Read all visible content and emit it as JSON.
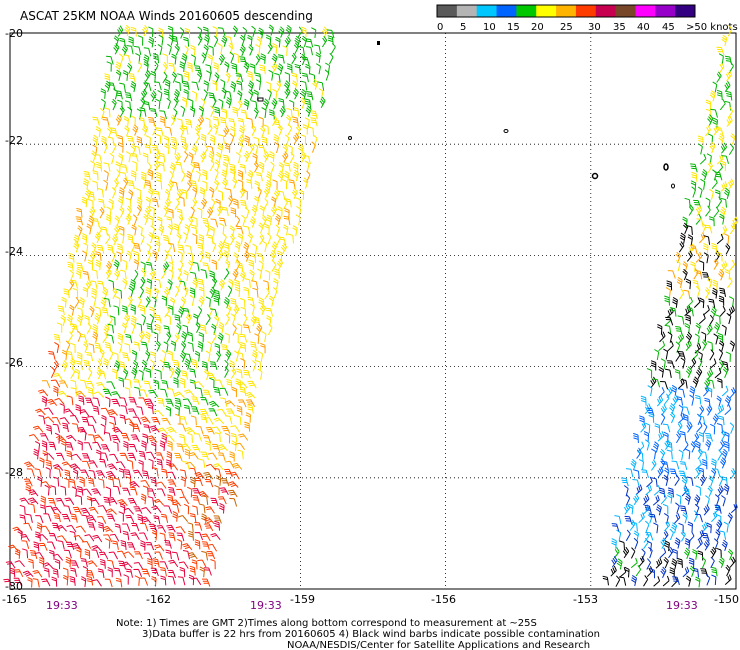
{
  "title": "ASCAT 25KM NOAA Winds 20160605 descending",
  "legend": {
    "labels": [
      "0",
      "5",
      "10",
      "15",
      "20",
      "25",
      "30",
      "35",
      "40",
      "45",
      ">50 knots"
    ],
    "colors": [
      "#5a5a5a",
      "#b4b4b4",
      "#00c8ff",
      "#0064ff",
      "#00c800",
      "#ffff00",
      "#ffb400",
      "#ff3c00",
      "#c80050",
      "#784628",
      "#ff00ff",
      "#9600c8",
      "#320080"
    ]
  },
  "map": {
    "latitudes": [
      "-20",
      "-22",
      "-24",
      "-26",
      "-28",
      "-30"
    ],
    "longitudes": [
      "-165",
      "-162",
      "-159",
      "-156",
      "-153",
      "-150"
    ],
    "lon_range": [
      -165,
      -150
    ],
    "lat_range": [
      -30,
      -20
    ],
    "gridlines": "dotted",
    "times": [
      "19:33",
      "19:33",
      "19:33"
    ],
    "time_color": "#800080"
  },
  "notes": {
    "line1": "Note: 1) Times are GMT 2)Times along bottom correspond to measurement at ~25S",
    "line2": "3)Data buffer is 22 hrs from 20160605 4) Black wind barbs indicate possible contamination",
    "line3": "NOAA/NESDIS/Center for Satellite Applications and Research"
  },
  "swaths": [
    {
      "name": "left-swath",
      "top_lon_range": [
        -162.8,
        -158.1
      ],
      "bottom_lon_range": [
        -165,
        -160.7
      ]
    },
    {
      "name": "right-swath",
      "top_lon_range": [
        -150.2,
        -150.0
      ],
      "bottom_lon_range": [
        -152.7,
        -150.0
      ]
    }
  ],
  "colors": {
    "contamination": "#000000",
    "grid": "#000000"
  }
}
